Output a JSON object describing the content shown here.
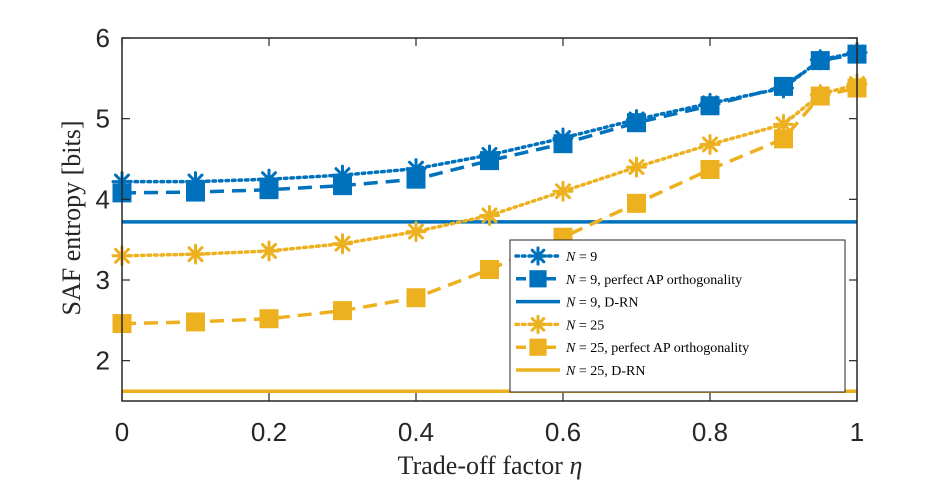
{
  "chart_data": {
    "type": "line",
    "xlabel": "Trade-off factor η",
    "ylabel": "SAF entropy [bits]",
    "xlim": [
      0,
      1
    ],
    "ylim": [
      1.5,
      6
    ],
    "x_ticks": [
      0,
      0.2,
      0.4,
      0.6,
      0.8,
      1
    ],
    "x_tick_labels": [
      "0",
      "0.2",
      "0.4",
      "0.6",
      "0.8",
      "1"
    ],
    "y_ticks": [
      2,
      3,
      4,
      5,
      6
    ],
    "y_tick_labels": [
      "2",
      "3",
      "4",
      "5",
      "6"
    ],
    "legend_position": "bottom-right",
    "series": [
      {
        "name": "N = 9",
        "color": "#0072BD",
        "line": "dotted",
        "marker": "asterisk",
        "x": [
          0,
          0.1,
          0.2,
          0.3,
          0.4,
          0.5,
          0.6,
          0.7,
          0.8,
          0.9,
          0.95,
          1
        ],
        "y": [
          4.22,
          4.22,
          4.25,
          4.3,
          4.38,
          4.55,
          4.76,
          4.99,
          5.19,
          5.38,
          5.73,
          5.82
        ]
      },
      {
        "name": "N = 9, perfect AP orthogonality",
        "color": "#0072BD",
        "line": "dashed",
        "marker": "square",
        "x": [
          0,
          0.1,
          0.2,
          0.3,
          0.4,
          0.5,
          0.6,
          0.7,
          0.8,
          0.9,
          0.95,
          1
        ],
        "y": [
          4.08,
          4.09,
          4.12,
          4.17,
          4.25,
          4.48,
          4.69,
          4.95,
          5.16,
          5.4,
          5.72,
          5.8
        ]
      },
      {
        "name": "N = 9, D-RN",
        "color": "#0072BD",
        "line": "solid",
        "marker": "none",
        "x": [
          0,
          1
        ],
        "y": [
          3.72,
          3.72
        ]
      },
      {
        "name": "N = 25",
        "color": "#EDB120",
        "line": "dotted",
        "marker": "asterisk",
        "x": [
          0,
          0.1,
          0.2,
          0.3,
          0.4,
          0.5,
          0.6,
          0.7,
          0.8,
          0.9,
          0.95,
          1
        ],
        "y": [
          3.3,
          3.32,
          3.36,
          3.45,
          3.6,
          3.8,
          4.1,
          4.4,
          4.68,
          4.93,
          5.3,
          5.43
        ]
      },
      {
        "name": "N = 25, perfect AP orthogonality",
        "color": "#EDB120",
        "line": "dashed",
        "marker": "square",
        "x": [
          0,
          0.1,
          0.2,
          0.3,
          0.4,
          0.5,
          0.6,
          0.7,
          0.8,
          0.9,
          0.95,
          1
        ],
        "y": [
          2.46,
          2.48,
          2.52,
          2.62,
          2.78,
          3.13,
          3.53,
          3.95,
          4.37,
          4.75,
          5.28,
          5.38
        ]
      },
      {
        "name": "N = 25, D-RN",
        "color": "#EDB120",
        "line": "solid",
        "marker": "none",
        "x": [
          0,
          1
        ],
        "y": [
          1.62,
          1.62
        ]
      }
    ]
  },
  "legend": {
    "entries": [
      {
        "prefix": "N",
        "rest": " = 9"
      },
      {
        "prefix": "N",
        "rest": " = 9, perfect AP orthogonality"
      },
      {
        "prefix": "N",
        "rest": " = 9, D-RN"
      },
      {
        "prefix": "N",
        "rest": " = 25"
      },
      {
        "prefix": "N",
        "rest": " = 25, perfect AP orthogonality"
      },
      {
        "prefix": "N",
        "rest": " = 25, D-RN"
      }
    ]
  },
  "axis_text": {
    "xlabel_main": "Trade-off factor ",
    "xlabel_symbol": "η",
    "ylabel": "SAF entropy [bits]"
  }
}
